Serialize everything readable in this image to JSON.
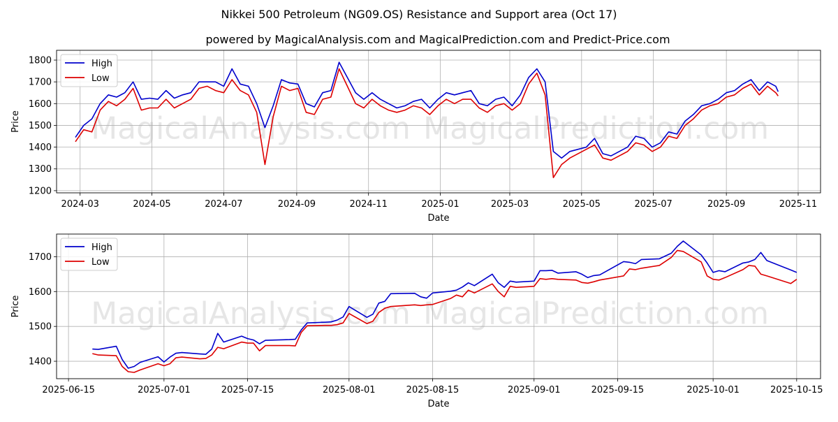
{
  "title": "Nikkei 500 Petroleum (NG09.OS) Resistance and Support area (Oct 17)",
  "subtitle": "powered by MagicalAnalysis.com and MagicalPrediction.com and Predict-Price.com",
  "watermarks": [
    "MagicalAnalysis.com",
    "MagicalPrediction.com"
  ],
  "colors": {
    "high": "#0000cc",
    "low": "#dd0000"
  },
  "chart_data": [
    {
      "type": "line",
      "xlabel": "Date",
      "ylabel": "Price",
      "legend": [
        "High",
        "Low"
      ],
      "legend_position": "top-left",
      "grid": true,
      "xticks": [
        "2024-03",
        "2024-05",
        "2024-07",
        "2024-09",
        "2024-11",
        "2025-01",
        "2025-03",
        "2025-05",
        "2025-07",
        "2025-09",
        "2025-11"
      ],
      "xtick_dates": [
        "2024-03-01",
        "2024-05-01",
        "2024-07-01",
        "2024-09-01",
        "2024-11-01",
        "2025-01-01",
        "2025-03-01",
        "2025-05-01",
        "2025-07-01",
        "2025-09-01",
        "2025-11-01"
      ],
      "yticks": [
        1200,
        1300,
        1400,
        1500,
        1600,
        1700,
        1800
      ],
      "xlim": [
        "2024-02-10",
        "2025-11-20"
      ],
      "ylim": [
        1190,
        1845
      ],
      "x": [
        "2024-02-26",
        "2024-03-04",
        "2024-03-11",
        "2024-03-18",
        "2024-03-25",
        "2024-04-01",
        "2024-04-08",
        "2024-04-15",
        "2024-04-22",
        "2024-04-29",
        "2024-05-06",
        "2024-05-13",
        "2024-05-20",
        "2024-05-27",
        "2024-06-03",
        "2024-06-10",
        "2024-06-17",
        "2024-06-24",
        "2024-07-01",
        "2024-07-08",
        "2024-07-15",
        "2024-07-22",
        "2024-07-29",
        "2024-08-05",
        "2024-08-12",
        "2024-08-19",
        "2024-08-26",
        "2024-09-02",
        "2024-09-09",
        "2024-09-16",
        "2024-09-23",
        "2024-09-30",
        "2024-10-07",
        "2024-10-14",
        "2024-10-21",
        "2024-10-28",
        "2024-11-04",
        "2024-11-11",
        "2024-11-18",
        "2024-11-25",
        "2024-12-02",
        "2024-12-09",
        "2024-12-16",
        "2024-12-23",
        "2024-12-30",
        "2025-01-06",
        "2025-01-13",
        "2025-01-20",
        "2025-01-27",
        "2025-02-03",
        "2025-02-10",
        "2025-02-17",
        "2025-02-24",
        "2025-03-03",
        "2025-03-10",
        "2025-03-17",
        "2025-03-24",
        "2025-03-31",
        "2025-04-07",
        "2025-04-14",
        "2025-04-21",
        "2025-04-28",
        "2025-05-05",
        "2025-05-12",
        "2025-05-19",
        "2025-05-26",
        "2025-06-02",
        "2025-06-09",
        "2025-06-16",
        "2025-06-23",
        "2025-06-30",
        "2025-07-07",
        "2025-07-14",
        "2025-07-21",
        "2025-07-28",
        "2025-08-04",
        "2025-08-11",
        "2025-08-18",
        "2025-08-25",
        "2025-09-01",
        "2025-09-08",
        "2025-09-15",
        "2025-09-22",
        "2025-09-29",
        "2025-10-06",
        "2025-10-13",
        "2025-10-15"
      ],
      "series": [
        {
          "name": "High",
          "values": [
            1445,
            1500,
            1530,
            1600,
            1640,
            1630,
            1650,
            1700,
            1620,
            1625,
            1620,
            1660,
            1625,
            1640,
            1650,
            1700,
            1700,
            1700,
            1680,
            1760,
            1690,
            1680,
            1600,
            1490,
            1590,
            1710,
            1695,
            1690,
            1600,
            1585,
            1650,
            1660,
            1790,
            1720,
            1650,
            1620,
            1650,
            1620,
            1600,
            1580,
            1590,
            1610,
            1620,
            1580,
            1620,
            1650,
            1640,
            1650,
            1660,
            1600,
            1590,
            1620,
            1630,
            1590,
            1640,
            1720,
            1760,
            1700,
            1380,
            1350,
            1380,
            1390,
            1400,
            1440,
            1370,
            1360,
            1380,
            1400,
            1450,
            1440,
            1400,
            1420,
            1470,
            1460,
            1520,
            1550,
            1590,
            1600,
            1620,
            1650,
            1660,
            1690,
            1710,
            1660,
            1700,
            1680,
            1655
          ]
        },
        {
          "name": "Low",
          "values": [
            1425,
            1480,
            1470,
            1570,
            1610,
            1590,
            1620,
            1670,
            1570,
            1580,
            1580,
            1620,
            1580,
            1600,
            1620,
            1670,
            1680,
            1660,
            1650,
            1710,
            1660,
            1640,
            1560,
            1320,
            1540,
            1680,
            1660,
            1670,
            1560,
            1550,
            1620,
            1630,
            1760,
            1680,
            1600,
            1580,
            1620,
            1590,
            1570,
            1560,
            1570,
            1590,
            1580,
            1550,
            1590,
            1620,
            1600,
            1620,
            1620,
            1580,
            1560,
            1590,
            1600,
            1570,
            1600,
            1690,
            1740,
            1640,
            1260,
            1320,
            1350,
            1370,
            1390,
            1410,
            1350,
            1340,
            1360,
            1380,
            1420,
            1410,
            1380,
            1400,
            1450,
            1440,
            1500,
            1530,
            1570,
            1590,
            1600,
            1630,
            1640,
            1670,
            1690,
            1640,
            1680,
            1650,
            1635
          ]
        }
      ]
    },
    {
      "type": "line",
      "xlabel": "Date",
      "ylabel": "Price",
      "legend": [
        "High",
        "Low"
      ],
      "legend_position": "top-left",
      "grid": true,
      "xticks": [
        "2025-06-15",
        "2025-07-01",
        "2025-07-15",
        "2025-08-01",
        "2025-08-15",
        "2025-09-01",
        "2025-09-15",
        "2025-10-01",
        "2025-10-15"
      ],
      "xtick_dates": [
        "2025-06-15",
        "2025-07-01",
        "2025-07-15",
        "2025-08-01",
        "2025-08-15",
        "2025-09-01",
        "2025-09-15",
        "2025-10-01",
        "2025-10-15"
      ],
      "yticks": [
        1400,
        1500,
        1600,
        1700
      ],
      "xlim": [
        "2025-06-13",
        "2025-10-19"
      ],
      "ylim": [
        1350,
        1765
      ],
      "x": [
        "2025-06-19",
        "2025-06-20",
        "2025-06-23",
        "2025-06-24",
        "2025-06-25",
        "2025-06-26",
        "2025-06-27",
        "2025-06-30",
        "2025-07-01",
        "2025-07-02",
        "2025-07-03",
        "2025-07-04",
        "2025-07-07",
        "2025-07-08",
        "2025-07-09",
        "2025-07-10",
        "2025-07-11",
        "2025-07-14",
        "2025-07-15",
        "2025-07-16",
        "2025-07-17",
        "2025-07-18",
        "2025-07-22",
        "2025-07-23",
        "2025-07-24",
        "2025-07-25",
        "2025-07-28",
        "2025-07-29",
        "2025-07-30",
        "2025-07-31",
        "2025-08-01",
        "2025-08-04",
        "2025-08-05",
        "2025-08-06",
        "2025-08-07",
        "2025-08-08",
        "2025-08-12",
        "2025-08-13",
        "2025-08-14",
        "2025-08-15",
        "2025-08-18",
        "2025-08-19",
        "2025-08-20",
        "2025-08-21",
        "2025-08-22",
        "2025-08-25",
        "2025-08-26",
        "2025-08-27",
        "2025-08-28",
        "2025-08-29",
        "2025-09-01",
        "2025-09-02",
        "2025-09-03",
        "2025-09-04",
        "2025-09-05",
        "2025-09-08",
        "2025-09-09",
        "2025-09-10",
        "2025-09-11",
        "2025-09-12",
        "2025-09-16",
        "2025-09-17",
        "2025-09-18",
        "2025-09-19",
        "2025-09-22",
        "2025-09-24",
        "2025-09-25",
        "2025-09-26",
        "2025-09-29",
        "2025-09-30",
        "2025-10-01",
        "2025-10-02",
        "2025-10-03",
        "2025-10-06",
        "2025-10-07",
        "2025-10-08",
        "2025-10-09",
        "2025-10-10",
        "2025-10-14",
        "2025-10-15"
      ],
      "series": [
        {
          "name": "High",
          "values": [
            1435,
            1434,
            1443,
            1405,
            1380,
            1385,
            1397,
            1413,
            1398,
            1412,
            1423,
            1425,
            1421,
            1420,
            1435,
            1480,
            1455,
            1472,
            1465,
            1461,
            1450,
            1460,
            1462,
            1463,
            1490,
            1510,
            1512,
            1513,
            1518,
            1527,
            1557,
            1526,
            1535,
            1567,
            1572,
            1594,
            1595,
            1585,
            1581,
            1596,
            1601,
            1604,
            1613,
            1625,
            1617,
            1650,
            1625,
            1612,
            1630,
            1627,
            1630,
            1660,
            1660,
            1661,
            1653,
            1657,
            1650,
            1640,
            1646,
            1648,
            1686,
            1684,
            1680,
            1692,
            1694,
            1710,
            1730,
            1745,
            1705,
            1682,
            1655,
            1660,
            1657,
            1682,
            1685,
            1692,
            1712,
            1689,
            1662,
            1655
          ]
        },
        {
          "name": "Low",
          "values": [
            1422,
            1418,
            1416,
            1385,
            1370,
            1368,
            1375,
            1393,
            1387,
            1393,
            1410,
            1412,
            1407,
            1408,
            1418,
            1440,
            1436,
            1455,
            1452,
            1452,
            1430,
            1445,
            1445,
            1444,
            1483,
            1502,
            1503,
            1503,
            1505,
            1510,
            1537,
            1508,
            1515,
            1540,
            1552,
            1557,
            1562,
            1560,
            1562,
            1563,
            1580,
            1590,
            1585,
            1604,
            1596,
            1622,
            1600,
            1585,
            1615,
            1612,
            1615,
            1637,
            1635,
            1637,
            1635,
            1633,
            1626,
            1624,
            1628,
            1633,
            1645,
            1665,
            1663,
            1667,
            1675,
            1698,
            1718,
            1715,
            1685,
            1645,
            1635,
            1633,
            1640,
            1663,
            1675,
            1673,
            1650,
            1645,
            1623,
            1635
          ]
        }
      ]
    }
  ]
}
